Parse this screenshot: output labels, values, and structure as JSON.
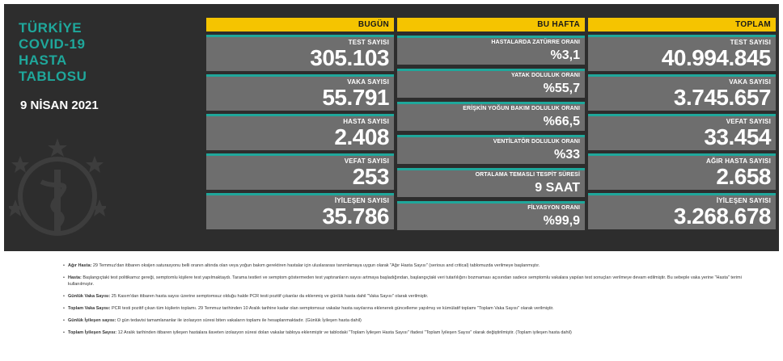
{
  "title_lines": [
    "TÜRKİYE",
    "COVID-19",
    "HASTA",
    "TABLOSU"
  ],
  "date": "9 NİSAN 2021",
  "colors": {
    "accent": "#1fa79b",
    "header": "#f5c400",
    "card": "#6e6e6e",
    "board": "#2d2d2d"
  },
  "today": {
    "header": "BUGÜN",
    "cards": [
      {
        "label": "TEST SAYISI",
        "value": "305.103"
      },
      {
        "label": "VAKA SAYISI",
        "value": "55.791"
      },
      {
        "label": "HASTA SAYISI",
        "value": "2.408"
      },
      {
        "label": "VEFAT SAYISI",
        "value": "253"
      },
      {
        "label": "İYİLEŞEN SAYISI",
        "value": "35.786"
      }
    ]
  },
  "week": {
    "header": "BU HAFTA",
    "cards": [
      {
        "label": "HASTALARDA ZATÜRRE ORANI",
        "value": "%3,1"
      },
      {
        "label": "YATAK DOLULUK ORANI",
        "value": "%55,7"
      },
      {
        "label": "ERİŞKİN YOĞUN BAKIM DOLULUK ORANI",
        "value": "%66,5"
      },
      {
        "label": "VENTİLATÖR DOLULUK ORANI",
        "value": "%33"
      },
      {
        "label": "ORTALAMA TEMASLI TESPİT SÜRESİ",
        "value": "9 SAAT"
      },
      {
        "label": "FİLYASYON ORANI",
        "value": "%99,9"
      }
    ]
  },
  "total": {
    "header": "TOPLAM",
    "cards": [
      {
        "label": "TEST SAYISI",
        "value": "40.994.845"
      },
      {
        "label": "VAKA SAYISI",
        "value": "3.745.657"
      },
      {
        "label": "VEFAT SAYISI",
        "value": "33.454"
      },
      {
        "label": "AĞIR HASTA SAYISI",
        "value": "2.658"
      },
      {
        "label": "İYİLEŞEN SAYISI",
        "value": "3.268.678"
      }
    ]
  },
  "notes": [
    {
      "term": "Ağır Hasta:",
      "text": " 29 Temmuz'dan itibaren oksijen saturasyonu belli oranın altında olan veya yoğun bakım gerektiren hastalar için uluslararası tanımlamaya uygun olarak \"Ağır Hasta Sayısı\" (serious and critical) tablomuzda verilmeye başlanmıştır."
    },
    {
      "term": "Hasta:",
      "text": " Başlangıçtaki test politikamız gereği, semptomlu kişilere test yapılmaktaydı. Tarama testleri ve semptom göstermeden test yaptıranların sayısı artmaya başladığından, başlangıçtaki veri tutarlılığını bozmaması açısından sadece semptomlu vakalara yapılan test sonuçları verilmeye devam edilmiştir. Bu sebeple vaka yerine \"Hasta\" terimi kullanılmıştır."
    },
    {
      "term": "Günlük Vaka Sayısı:",
      "text": " 25 Kasım'dan itibaren hasta sayısı üzerine semptomsuz olduğu halde PCR testi pozitif çıkanlar da eklenmiş ve günlük hasta dahil \"Vaka Sayısı\" olarak verilmiştir."
    },
    {
      "term": "Toplam Vaka Sayısı:",
      "text": " PCR testi pozitif çıkan tüm kişilerin toplamı. 29 Temmuz tarihinden 10 Aralık tarihine kadar olan semptomsuz vakalar hasta sayılarına eklenerek güncelleme yapılmış ve kümülatif toplamı \"Toplam Vaka Sayısı\" olarak verilmiştir."
    },
    {
      "term": "Günlük İyileşen sayısı:",
      "text": " O gün tedavisi tamamlananlar ile izolasyon süresi biten vakaların toplamı ile hesaplanmaktadır. (Günlük İyileşen hasta dahil)"
    },
    {
      "term": "Toplam İyileşen Sayısı:",
      "text": " 12 Aralık tarihinden itibaren iyileşen hastalara ilaveten izolasyon süresi dolan vakalar tabloya eklenmiştir ve tablodaki \"Toplam İyileşen Hasta Sayısı\" ifadesi \"Toplam İyileşen Sayısı\" olarak değiştirilmiştir. (Toplam iyileşen hasta dahil)"
    }
  ]
}
